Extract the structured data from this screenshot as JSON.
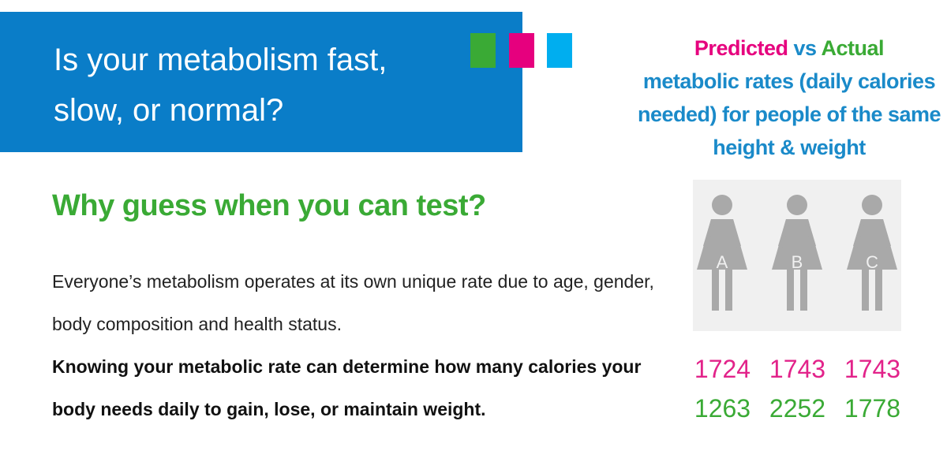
{
  "header": {
    "title": "Is your metabolism fast, slow, or normal?"
  },
  "legend": {
    "predicted": "Predicted",
    "vs": "vs",
    "actual": "Actual",
    "caption": "metabolic rates (daily calories needed) for people of the same height & weight"
  },
  "subheading": "Why guess when you can test?",
  "body": {
    "paragraph": "Everyone’s metabolism operates at its own unique rate due to age, gender, body composition and health status.",
    "emphasis": "Knowing your metabolic rate can determine how many calories your body needs daily to gain, lose, or maintain weight."
  },
  "people": [
    {
      "label": "A",
      "predicted": 1724,
      "actual": 1263
    },
    {
      "label": "B",
      "predicted": 1743,
      "actual": 2252
    },
    {
      "label": "C",
      "predicted": 1743,
      "actual": 1778
    }
  ]
}
